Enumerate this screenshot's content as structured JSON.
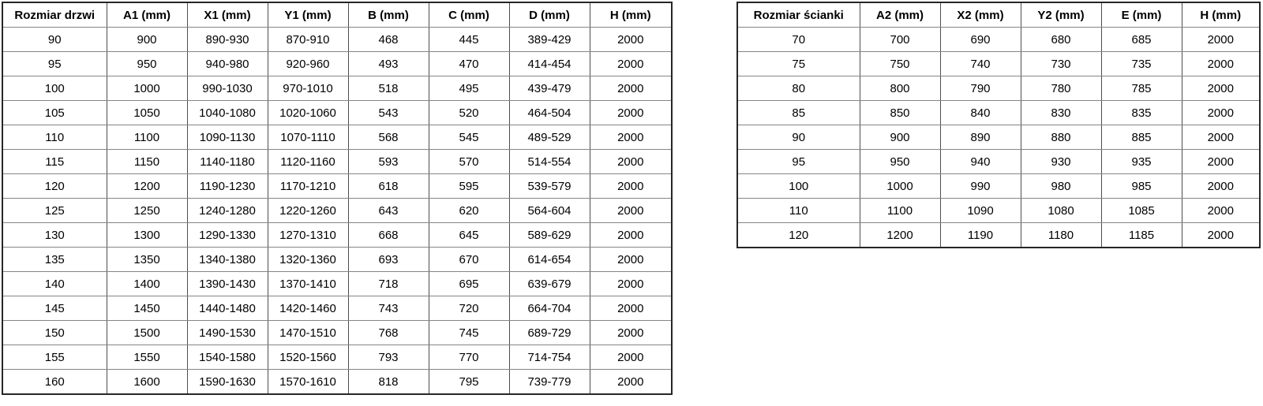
{
  "page": {
    "background_color": "#ffffff",
    "text_color": "#000000",
    "border_outer_color": "#262626",
    "border_inner_vertical_color": "#4d4d4d",
    "border_inner_horizontal_color": "#858585"
  },
  "tables": {
    "door_table": {
      "title": "door sizes table",
      "headers": [
        "Rozmiar drzwi",
        "A1 (mm)",
        "X1 (mm)",
        "Y1 (mm)",
        "B (mm)",
        "C (mm)",
        "D (mm)",
        "H (mm)"
      ],
      "rows": [
        [
          "90",
          "900",
          "890-930",
          "870-910",
          "468",
          "445",
          "389-429",
          "2000"
        ],
        [
          "95",
          "950",
          "940-980",
          "920-960",
          "493",
          "470",
          "414-454",
          "2000"
        ],
        [
          "100",
          "1000",
          "990-1030",
          "970-1010",
          "518",
          "495",
          "439-479",
          "2000"
        ],
        [
          "105",
          "1050",
          "1040-1080",
          "1020-1060",
          "543",
          "520",
          "464-504",
          "2000"
        ],
        [
          "110",
          "1100",
          "1090-1130",
          "1070-1110",
          "568",
          "545",
          "489-529",
          "2000"
        ],
        [
          "115",
          "1150",
          "1140-1180",
          "1120-1160",
          "593",
          "570",
          "514-554",
          "2000"
        ],
        [
          "120",
          "1200",
          "1190-1230",
          "1170-1210",
          "618",
          "595",
          "539-579",
          "2000"
        ],
        [
          "125",
          "1250",
          "1240-1280",
          "1220-1260",
          "643",
          "620",
          "564-604",
          "2000"
        ],
        [
          "130",
          "1300",
          "1290-1330",
          "1270-1310",
          "668",
          "645",
          "589-629",
          "2000"
        ],
        [
          "135",
          "1350",
          "1340-1380",
          "1320-1360",
          "693",
          "670",
          "614-654",
          "2000"
        ],
        [
          "140",
          "1400",
          "1390-1430",
          "1370-1410",
          "718",
          "695",
          "639-679",
          "2000"
        ],
        [
          "145",
          "1450",
          "1440-1480",
          "1420-1460",
          "743",
          "720",
          "664-704",
          "2000"
        ],
        [
          "150",
          "1500",
          "1490-1530",
          "1470-1510",
          "768",
          "745",
          "689-729",
          "2000"
        ],
        [
          "155",
          "1550",
          "1540-1580",
          "1520-1560",
          "793",
          "770",
          "714-754",
          "2000"
        ],
        [
          "160",
          "1600",
          "1590-1630",
          "1570-1610",
          "818",
          "795",
          "739-779",
          "2000"
        ]
      ]
    },
    "wall_table": {
      "title": "wall panel sizes table",
      "headers": [
        "Rozmiar ścianki",
        "A2 (mm)",
        "X2 (mm)",
        "Y2 (mm)",
        "E (mm)",
        "H (mm)"
      ],
      "rows": [
        [
          "70",
          "700",
          "690",
          "680",
          "685",
          "2000"
        ],
        [
          "75",
          "750",
          "740",
          "730",
          "735",
          "2000"
        ],
        [
          "80",
          "800",
          "790",
          "780",
          "785",
          "2000"
        ],
        [
          "85",
          "850",
          "840",
          "830",
          "835",
          "2000"
        ],
        [
          "90",
          "900",
          "890",
          "880",
          "885",
          "2000"
        ],
        [
          "95",
          "950",
          "940",
          "930",
          "935",
          "2000"
        ],
        [
          "100",
          "1000",
          "990",
          "980",
          "985",
          "2000"
        ],
        [
          "110",
          "1100",
          "1090",
          "1080",
          "1085",
          "2000"
        ],
        [
          "120",
          "1200",
          "1190",
          "1180",
          "1185",
          "2000"
        ]
      ]
    }
  }
}
